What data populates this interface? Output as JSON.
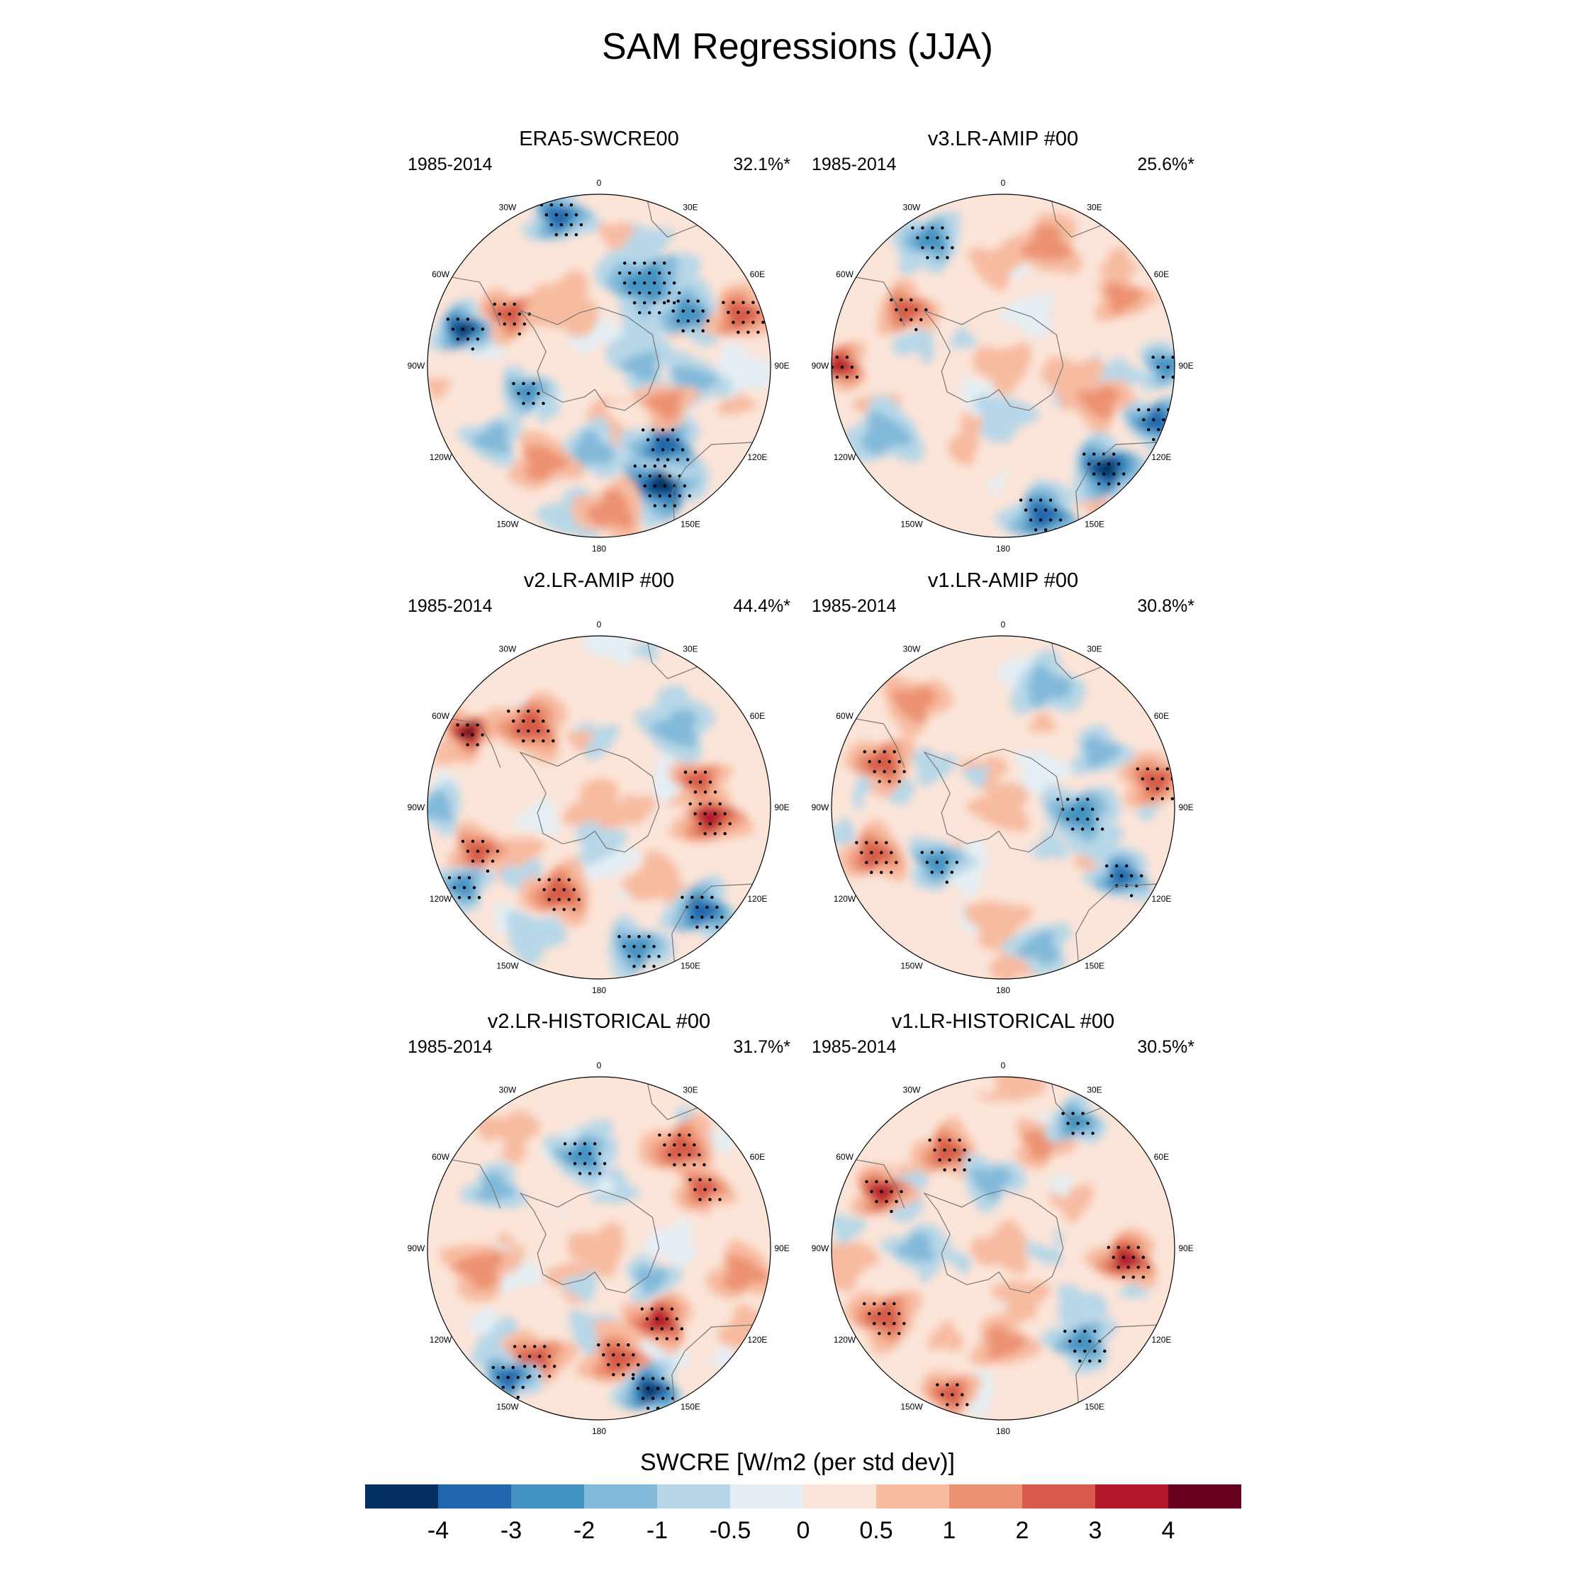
{
  "title": "SAM Regressions (JJA)",
  "chart_data": {
    "type": "heatmap",
    "projection": "south polar stereographic",
    "variable": "SWCRE",
    "colorbar": {
      "title": "SWCRE [W/m2 (per std dev)]",
      "levels": [
        "-4",
        "-3",
        "-2",
        "-1",
        "-0.5",
        "0",
        "0.5",
        "1",
        "2",
        "3",
        "4"
      ],
      "colors": [
        "#053061",
        "#2166ac",
        "#4393c3",
        "#82b9d9",
        "#b7d7e8",
        "#e4eef4",
        "#fbe4d8",
        "#f7bba0",
        "#ec9272",
        "#d65b4a",
        "#b2182b",
        "#67001f"
      ]
    },
    "longitude_labels": [
      "0",
      "30E",
      "60E",
      "90E",
      "120E",
      "150E",
      "180",
      "150W",
      "120W",
      "90W",
      "60W",
      "30W"
    ],
    "panels": [
      {
        "title": "ERA5-SWCRE00",
        "years": "1985-2014",
        "variance": "32.1%*",
        "features": [
          {
            "lon": 285,
            "r": 0.82,
            "v": -4,
            "s": 0.13
          },
          {
            "lon": 152,
            "r": 0.78,
            "v": -4,
            "s": 0.18
          },
          {
            "lon": 140,
            "r": 0.6,
            "v": -3,
            "s": 0.16
          },
          {
            "lon": 345,
            "r": 0.9,
            "v": -3,
            "s": 0.14
          },
          {
            "lon": 30,
            "r": 0.55,
            "v": -2,
            "s": 0.2
          },
          {
            "lon": 60,
            "r": 0.6,
            "v": -2,
            "s": 0.15
          },
          {
            "lon": 100,
            "r": 0.55,
            "v": -1,
            "s": 0.14
          },
          {
            "lon": 90,
            "r": 0.25,
            "v": -1,
            "s": 0.12
          },
          {
            "lon": 185,
            "r": 0.5,
            "v": -1,
            "s": 0.14
          },
          {
            "lon": 250,
            "r": 0.45,
            "v": -2,
            "s": 0.12
          },
          {
            "lon": 235,
            "r": 0.75,
            "v": -1,
            "s": 0.12
          },
          {
            "lon": 70,
            "r": 0.88,
            "v": 2,
            "s": 0.14
          },
          {
            "lon": 300,
            "r": 0.6,
            "v": 2,
            "s": 0.13
          },
          {
            "lon": 175,
            "r": 0.85,
            "v": 1,
            "s": 0.15
          },
          {
            "lon": 210,
            "r": 0.65,
            "v": 1,
            "s": 0.14
          },
          {
            "lon": 120,
            "r": 0.45,
            "v": 1,
            "s": 0.12
          },
          {
            "lon": 330,
            "r": 0.4,
            "v": 0.5,
            "s": 0.15
          }
        ]
      },
      {
        "title": "v3.LR-AMIP  #00",
        "years": "1985-2014",
        "variance": "25.6%*",
        "features": [
          {
            "lon": 135,
            "r": 0.85,
            "v": -4,
            "s": 0.16
          },
          {
            "lon": 110,
            "r": 0.95,
            "v": -3,
            "s": 0.14
          },
          {
            "lon": 165,
            "r": 0.9,
            "v": -3,
            "s": 0.16
          },
          {
            "lon": 90,
            "r": 0.95,
            "v": -2,
            "s": 0.12
          },
          {
            "lon": 330,
            "r": 0.85,
            "v": -2,
            "s": 0.14
          },
          {
            "lon": 240,
            "r": 0.8,
            "v": -1,
            "s": 0.16
          },
          {
            "lon": 180,
            "r": 0.3,
            "v": -0.5,
            "s": 0.12
          },
          {
            "lon": 270,
            "r": 0.95,
            "v": 3,
            "s": 0.12
          },
          {
            "lon": 300,
            "r": 0.65,
            "v": 2,
            "s": 0.13
          },
          {
            "lon": 110,
            "r": 0.6,
            "v": 1,
            "s": 0.13
          },
          {
            "lon": 20,
            "r": 0.75,
            "v": 1,
            "s": 0.15
          },
          {
            "lon": 60,
            "r": 0.8,
            "v": 1,
            "s": 0.12
          },
          {
            "lon": 0,
            "r": 0.0,
            "v": 0.5,
            "s": 0.12
          }
        ]
      },
      {
        "title": "v2.LR-AMIP  #00",
        "years": "1985-2014",
        "variance": "44.4%*",
        "features": [
          {
            "lon": 300,
            "r": 0.88,
            "v": 4,
            "s": 0.11
          },
          {
            "lon": 320,
            "r": 0.62,
            "v": 2,
            "s": 0.16
          },
          {
            "lon": 95,
            "r": 0.65,
            "v": 3,
            "s": 0.15
          },
          {
            "lon": 75,
            "r": 0.6,
            "v": 2,
            "s": 0.12
          },
          {
            "lon": 205,
            "r": 0.55,
            "v": 2,
            "s": 0.15
          },
          {
            "lon": 250,
            "r": 0.75,
            "v": 2,
            "s": 0.13
          },
          {
            "lon": 240,
            "r": 0.92,
            "v": -2,
            "s": 0.12
          },
          {
            "lon": 135,
            "r": 0.85,
            "v": -3,
            "s": 0.15
          },
          {
            "lon": 165,
            "r": 0.85,
            "v": -2,
            "s": 0.14
          },
          {
            "lon": 45,
            "r": 0.65,
            "v": -1,
            "s": 0.15
          },
          {
            "lon": 0,
            "r": 0.0,
            "v": 0.5,
            "s": 0.13
          },
          {
            "lon": 180,
            "r": 0.2,
            "v": -0.5,
            "s": 0.1
          },
          {
            "lon": 270,
            "r": 0.95,
            "v": -1,
            "s": 0.12
          }
        ]
      },
      {
        "title": "v1.LR-AMIP  #00",
        "years": "1985-2014",
        "variance": "30.8%*",
        "features": [
          {
            "lon": 95,
            "r": 0.45,
            "v": -2,
            "s": 0.16
          },
          {
            "lon": 120,
            "r": 0.8,
            "v": -3,
            "s": 0.13
          },
          {
            "lon": 80,
            "r": 0.9,
            "v": 2,
            "s": 0.14
          },
          {
            "lon": 290,
            "r": 0.75,
            "v": 2,
            "s": 0.14
          },
          {
            "lon": 250,
            "r": 0.8,
            "v": 2,
            "s": 0.14
          },
          {
            "lon": 230,
            "r": 0.5,
            "v": -2,
            "s": 0.13
          },
          {
            "lon": 165,
            "r": 0.85,
            "v": -1,
            "s": 0.13
          },
          {
            "lon": 20,
            "r": 0.75,
            "v": -1,
            "s": 0.15
          },
          {
            "lon": 320,
            "r": 0.8,
            "v": 1,
            "s": 0.14
          },
          {
            "lon": 0,
            "r": 0.0,
            "v": 0.5,
            "s": 0.12
          },
          {
            "lon": 60,
            "r": 0.65,
            "v": -1,
            "s": 0.12
          }
        ]
      },
      {
        "title": "v2.LR-HISTORICAL  #00",
        "years": "1985-2014",
        "variance": "31.7%*",
        "features": [
          {
            "lon": 140,
            "r": 0.55,
            "v": 3,
            "s": 0.14
          },
          {
            "lon": 170,
            "r": 0.65,
            "v": 2,
            "s": 0.15
          },
          {
            "lon": 210,
            "r": 0.75,
            "v": 2,
            "s": 0.15
          },
          {
            "lon": 40,
            "r": 0.75,
            "v": 2,
            "s": 0.16
          },
          {
            "lon": 60,
            "r": 0.7,
            "v": 2,
            "s": 0.12
          },
          {
            "lon": 260,
            "r": 0.7,
            "v": 1,
            "s": 0.15
          },
          {
            "lon": 160,
            "r": 0.88,
            "v": -4,
            "s": 0.14
          },
          {
            "lon": 215,
            "r": 0.92,
            "v": -3,
            "s": 0.13
          },
          {
            "lon": 350,
            "r": 0.55,
            "v": -2,
            "s": 0.14
          },
          {
            "lon": 300,
            "r": 0.7,
            "v": -1,
            "s": 0.12
          },
          {
            "lon": 120,
            "r": 0.35,
            "v": -1,
            "s": 0.11
          },
          {
            "lon": 0,
            "r": 0.0,
            "v": 0.5,
            "s": 0.12
          },
          {
            "lon": 100,
            "r": 0.85,
            "v": 1,
            "s": 0.14
          }
        ]
      },
      {
        "title": "v1.LR-HISTORICAL  #00",
        "years": "1985-2014",
        "variance": "30.5%*",
        "features": [
          {
            "lon": 95,
            "r": 0.72,
            "v": 3,
            "s": 0.14
          },
          {
            "lon": 295,
            "r": 0.78,
            "v": 3,
            "s": 0.13
          },
          {
            "lon": 240,
            "r": 0.8,
            "v": 2,
            "s": 0.15
          },
          {
            "lon": 330,
            "r": 0.65,
            "v": 2,
            "s": 0.14
          },
          {
            "lon": 20,
            "r": 0.65,
            "v": 1,
            "s": 0.12
          },
          {
            "lon": 140,
            "r": 0.72,
            "v": -2,
            "s": 0.14
          },
          {
            "lon": 30,
            "r": 0.85,
            "v": -2,
            "s": 0.12
          },
          {
            "lon": 350,
            "r": 0.4,
            "v": -1,
            "s": 0.13
          },
          {
            "lon": 270,
            "r": 0.5,
            "v": -1,
            "s": 0.12
          },
          {
            "lon": 180,
            "r": 0.55,
            "v": 1,
            "s": 0.13
          },
          {
            "lon": 200,
            "r": 0.9,
            "v": 2,
            "s": 0.12
          },
          {
            "lon": 0,
            "r": 0.0,
            "v": 0.5,
            "s": 0.12
          }
        ]
      }
    ]
  }
}
